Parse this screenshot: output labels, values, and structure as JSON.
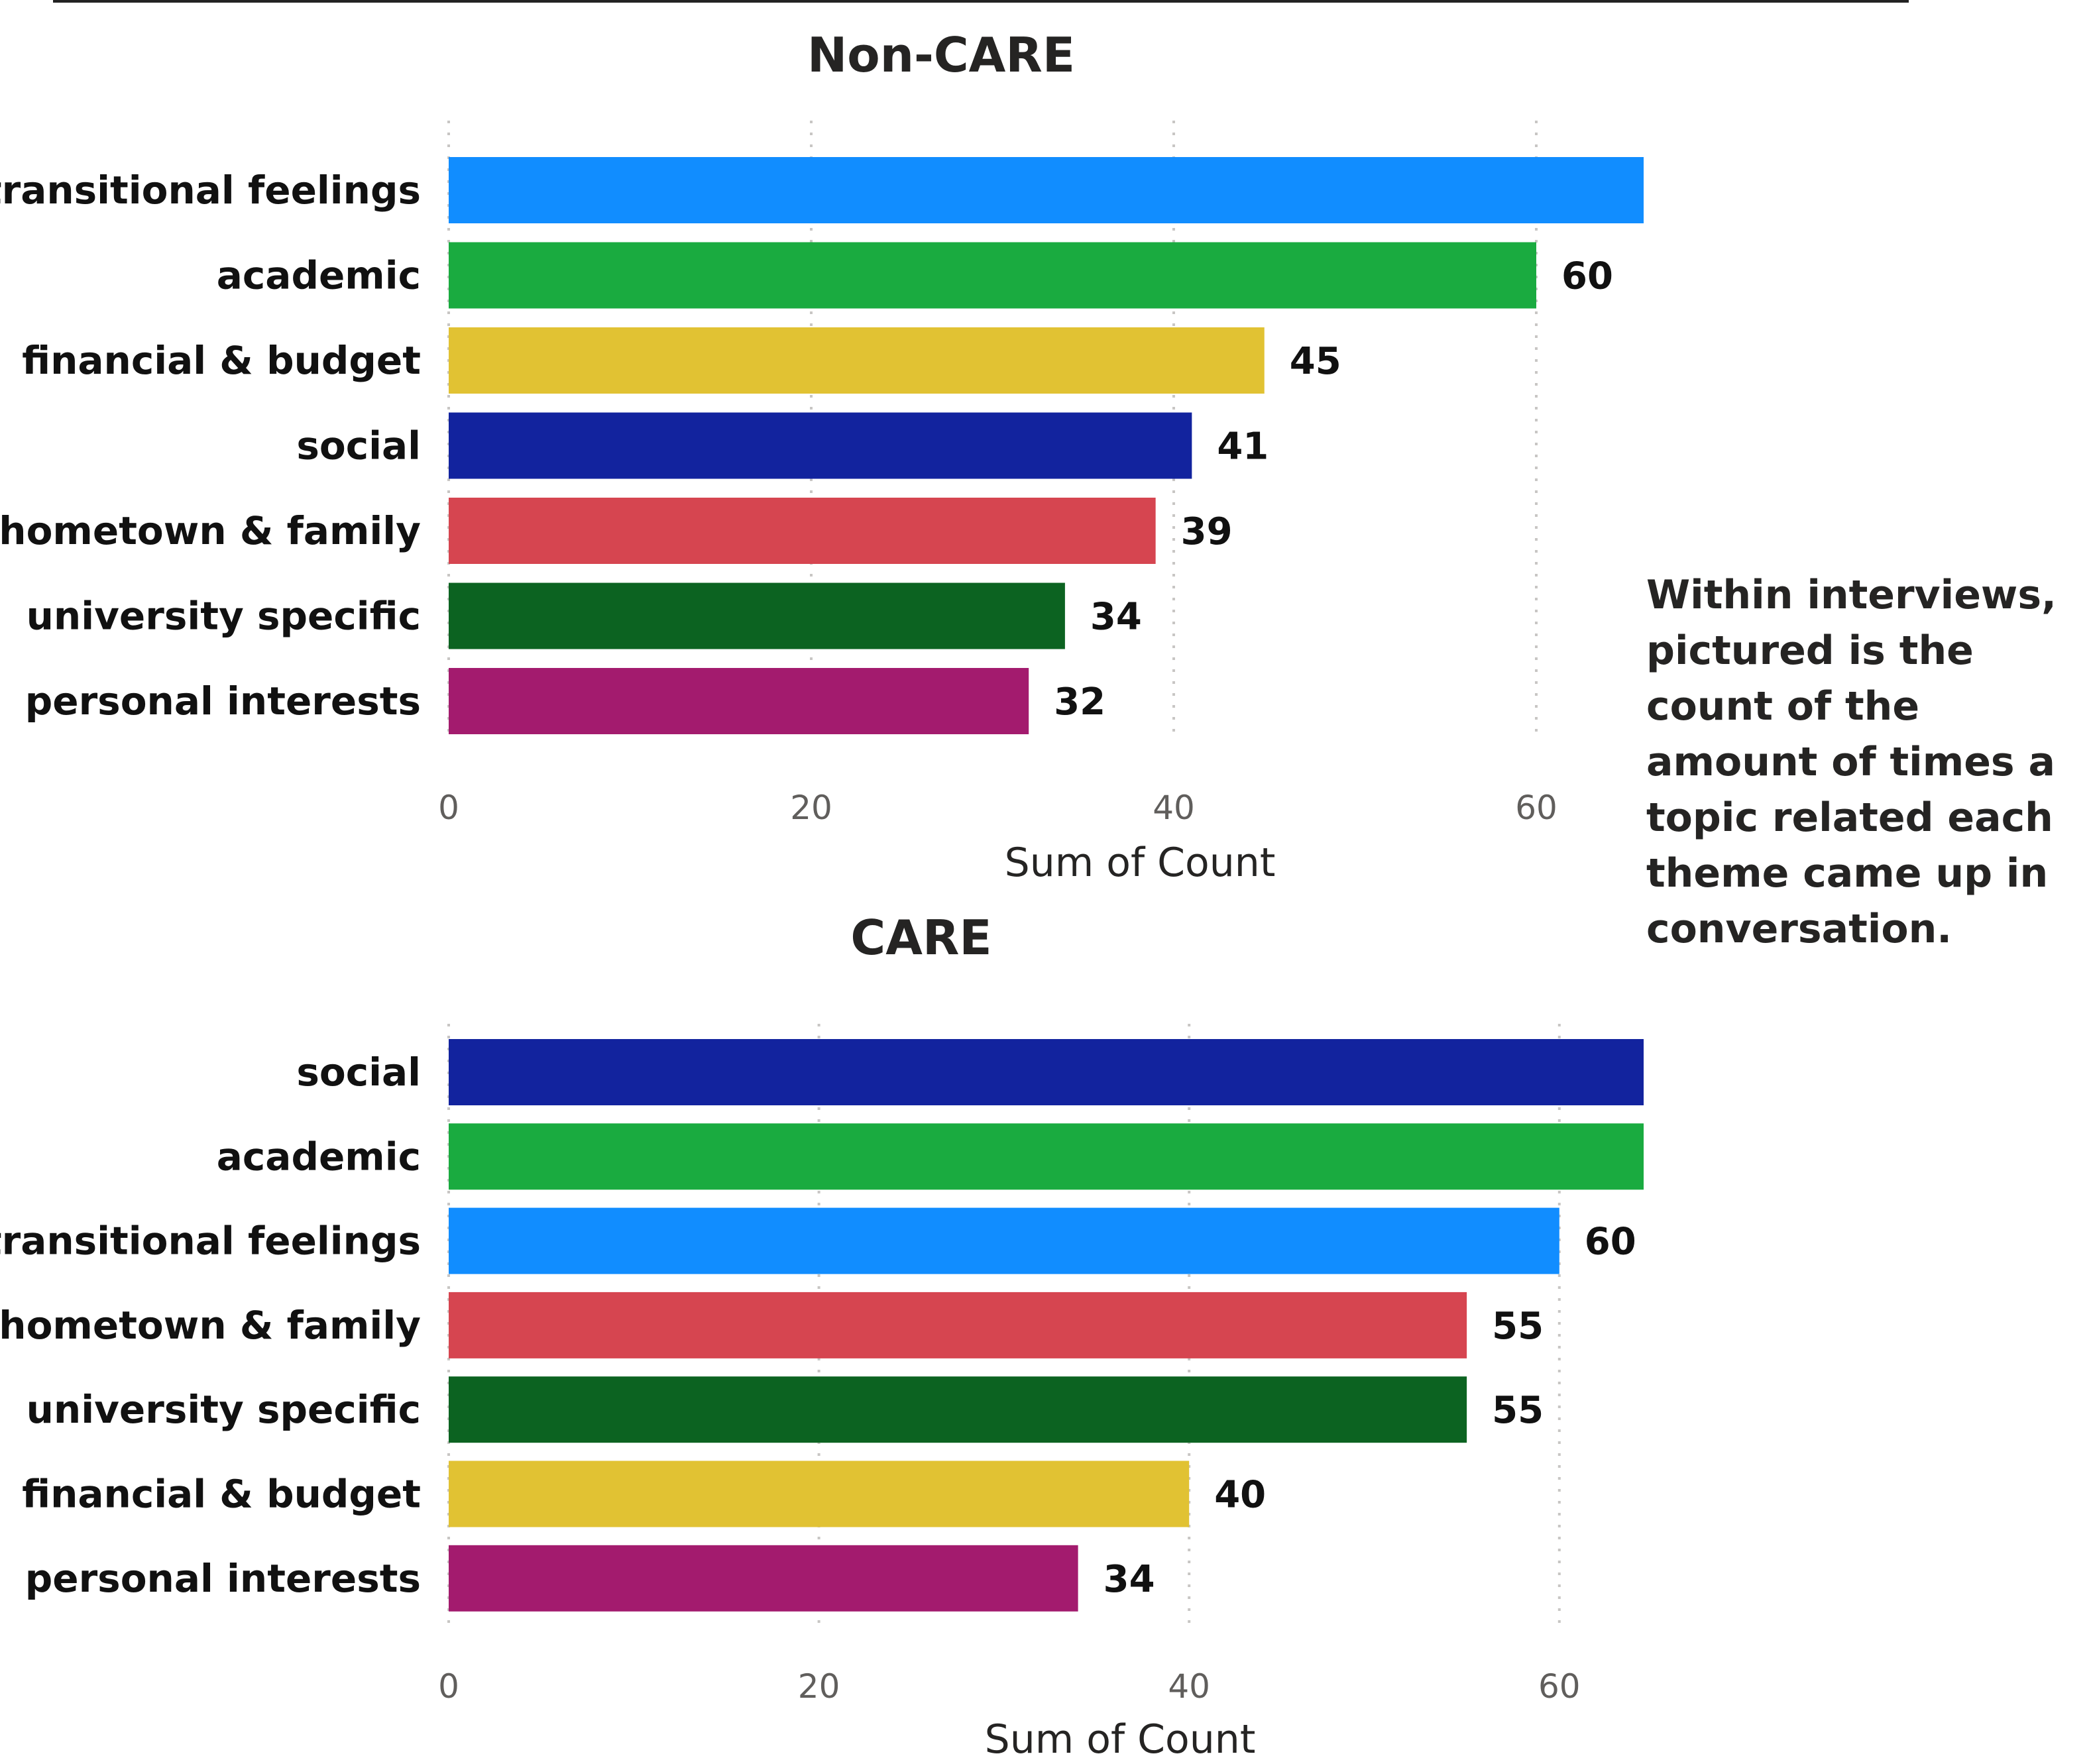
{
  "colors": {
    "transitional feelings": "#118dff",
    "academic": "#1aab40",
    "financial & budget": "#e1c233",
    "social": "#12239e",
    "hometown & family": "#d64550",
    "university specific": "#0c6321",
    "personal interests": "#a31b6e"
  },
  "annotation": "Within interviews, pictured is the count of the amount of times a topic related each theme came up in conversation.",
  "chart_data": [
    {
      "type": "bar",
      "orientation": "horizontal",
      "title": "Non-CARE",
      "xlabel": "Sum of Count",
      "ylabel": "",
      "categories": [
        "transitional feelings",
        "academic",
        "financial & budget",
        "social",
        "hometown & family",
        "university specific",
        "personal interests"
      ],
      "values": [
        72,
        60,
        45,
        41,
        39,
        34,
        32
      ],
      "xticks": [
        "0",
        "20",
        "40",
        "60"
      ],
      "xlim": [
        0,
        72
      ],
      "grid": true,
      "data_labels": true
    },
    {
      "type": "bar",
      "orientation": "horizontal",
      "title": "CARE",
      "xlabel": "Sum of Count",
      "ylabel": "",
      "categories": [
        "social",
        "academic",
        "transitional feelings",
        "hometown & family",
        "university specific",
        "financial & budget",
        "personal interests"
      ],
      "values": [
        69,
        66,
        60,
        55,
        55,
        40,
        34
      ],
      "xticks": [
        "0",
        "20",
        "40",
        "60"
      ],
      "xlim": [
        0,
        69
      ],
      "grid": true,
      "data_labels": true
    }
  ]
}
